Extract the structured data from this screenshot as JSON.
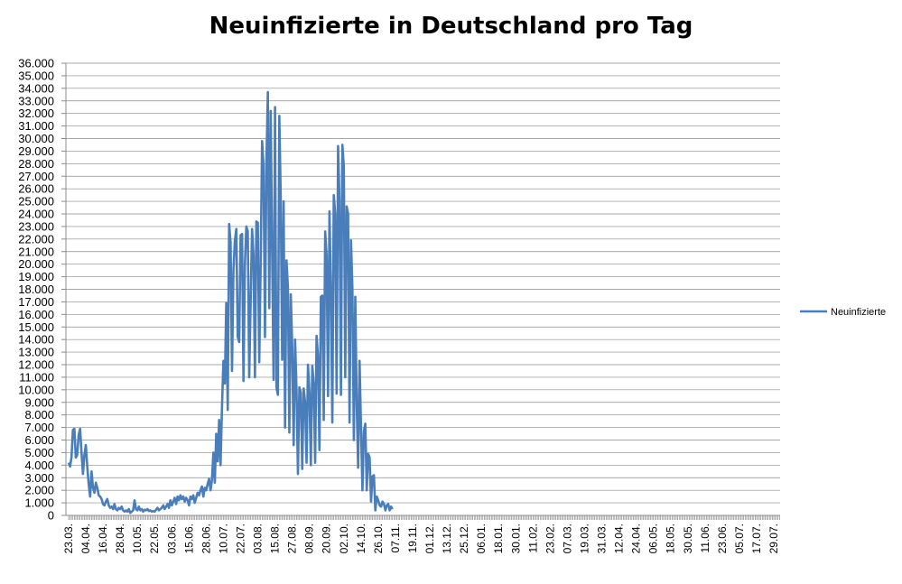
{
  "chart_data": {
    "type": "line",
    "title": "Neuinfizierte in Deutschland pro Tag",
    "xlabel": "",
    "ylabel": "",
    "ylim": [
      0,
      36000
    ],
    "y_tick_step": 1000,
    "y_tick_labels": [
      "0",
      "1.000",
      "2.000",
      "3.000",
      "4.000",
      "5.000",
      "6.000",
      "7.000",
      "8.000",
      "9.000",
      "10.000",
      "11.000",
      "12.000",
      "13.000",
      "14.000",
      "15.000",
      "16.000",
      "17.000",
      "18.000",
      "19.000",
      "20.000",
      "21.000",
      "22.000",
      "23.000",
      "24.000",
      "25.000",
      "26.000",
      "27.000",
      "28.000",
      "29.000",
      "30.000",
      "31.000",
      "32.000",
      "33.000",
      "34.000",
      "35.000",
      "36.000"
    ],
    "x_tick_labels": [
      "23.03.",
      "04.04.",
      "16.04.",
      "28.04.",
      "10.05.",
      "22.05.",
      "03.06.",
      "15.06.",
      "28.06.",
      "10.07.",
      "22.07.",
      "03.08.",
      "15.08.",
      "27.08.",
      "08.09.",
      "20.09.",
      "02.10.",
      "14.10.",
      "26.10.",
      "07.11.",
      "19.11.",
      "01.12.",
      "13.12.",
      "25.12.",
      "06.01.",
      "18.01.",
      "30.01.",
      "11.02.",
      "23.02.",
      "07.03.",
      "19.03.",
      "31.03.",
      "12.04.",
      "24.04.",
      "06.05.",
      "18.05.",
      "30.05.",
      "11.06.",
      "23.06.",
      "05.07.",
      "17.07.",
      "29.07."
    ],
    "grid": true,
    "legend_position": "right",
    "series": [
      {
        "name": "Neuinfizierte",
        "color": "#4a7ebb",
        "points": [
          [
            0,
            4200
          ],
          [
            1,
            3900
          ],
          [
            2,
            4600
          ],
          [
            3,
            6800
          ],
          [
            4,
            6900
          ],
          [
            5,
            4600
          ],
          [
            6,
            4800
          ],
          [
            7,
            6400
          ],
          [
            8,
            6900
          ],
          [
            9,
            5000
          ],
          [
            10,
            3300
          ],
          [
            11,
            4800
          ],
          [
            12,
            5600
          ],
          [
            13,
            3900
          ],
          [
            14,
            2500
          ],
          [
            15,
            1500
          ],
          [
            16,
            3500
          ],
          [
            17,
            2200
          ],
          [
            18,
            1800
          ],
          [
            19,
            2600
          ],
          [
            20,
            2200
          ],
          [
            21,
            1600
          ],
          [
            22,
            1500
          ],
          [
            23,
            1300
          ],
          [
            24,
            900
          ],
          [
            25,
            800
          ],
          [
            26,
            1100
          ],
          [
            27,
            1300
          ],
          [
            28,
            800
          ],
          [
            29,
            600
          ],
          [
            30,
            700
          ],
          [
            31,
            500
          ],
          [
            32,
            900
          ],
          [
            33,
            500
          ],
          [
            34,
            400
          ],
          [
            35,
            600
          ],
          [
            36,
            500
          ],
          [
            37,
            700
          ],
          [
            38,
            400
          ],
          [
            39,
            300
          ],
          [
            40,
            400
          ],
          [
            41,
            300
          ],
          [
            42,
            500
          ],
          [
            43,
            200
          ],
          [
            44,
            300
          ],
          [
            45,
            400
          ],
          [
            46,
            1200
          ],
          [
            47,
            500
          ],
          [
            48,
            400
          ],
          [
            49,
            700
          ],
          [
            50,
            400
          ],
          [
            51,
            500
          ],
          [
            52,
            300
          ],
          [
            53,
            450
          ],
          [
            54,
            400
          ],
          [
            55,
            500
          ],
          [
            56,
            350
          ],
          [
            57,
            400
          ],
          [
            58,
            300
          ],
          [
            59,
            350
          ],
          [
            60,
            300
          ],
          [
            61,
            450
          ],
          [
            62,
            600
          ],
          [
            63,
            400
          ],
          [
            64,
            500
          ],
          [
            65,
            600
          ],
          [
            66,
            800
          ],
          [
            67,
            500
          ],
          [
            68,
            700
          ],
          [
            69,
            900
          ],
          [
            70,
            600
          ],
          [
            71,
            1200
          ],
          [
            72,
            800
          ],
          [
            73,
            1100
          ],
          [
            74,
            1400
          ],
          [
            75,
            900
          ],
          [
            76,
            1500
          ],
          [
            77,
            1200
          ],
          [
            78,
            1600
          ],
          [
            79,
            1300
          ],
          [
            80,
            1500
          ],
          [
            81,
            1100
          ],
          [
            82,
            1400
          ],
          [
            83,
            1200
          ],
          [
            84,
            800
          ],
          [
            85,
            1500
          ],
          [
            86,
            1300
          ],
          [
            87,
            1600
          ],
          [
            88,
            1000
          ],
          [
            89,
            1400
          ],
          [
            90,
            1800
          ],
          [
            91,
            1600
          ],
          [
            92,
            2000
          ],
          [
            93,
            2300
          ],
          [
            94,
            1500
          ],
          [
            95,
            2200
          ],
          [
            96,
            2000
          ],
          [
            97,
            2500
          ],
          [
            98,
            2900
          ],
          [
            99,
            2000
          ],
          [
            100,
            2800
          ],
          [
            101,
            5000
          ],
          [
            102,
            2600
          ],
          [
            103,
            6500
          ],
          [
            104,
            4300
          ],
          [
            105,
            7600
          ],
          [
            106,
            4000
          ],
          [
            107,
            8600
          ],
          [
            108,
            12300
          ],
          [
            109,
            10500
          ],
          [
            110,
            16900
          ],
          [
            111,
            8400
          ],
          [
            112,
            23200
          ],
          [
            113,
            21700
          ],
          [
            114,
            11500
          ],
          [
            115,
            19500
          ],
          [
            116,
            21900
          ],
          [
            117,
            22800
          ],
          [
            118,
            14200
          ],
          [
            119,
            13800
          ],
          [
            120,
            22300
          ],
          [
            121,
            22400
          ],
          [
            122,
            10700
          ],
          [
            123,
            20000
          ],
          [
            124,
            23000
          ],
          [
            125,
            22600
          ],
          [
            126,
            11000
          ],
          [
            127,
            17000
          ],
          [
            128,
            22800
          ],
          [
            129,
            20700
          ],
          [
            130,
            11000
          ],
          [
            131,
            23400
          ],
          [
            132,
            23300
          ],
          [
            133,
            12200
          ],
          [
            134,
            20000
          ],
          [
            135,
            29800
          ],
          [
            136,
            27800
          ],
          [
            137,
            14200
          ],
          [
            138,
            28000
          ],
          [
            139,
            33700
          ],
          [
            140,
            16500
          ],
          [
            141,
            32200
          ],
          [
            142,
            21000
          ],
          [
            143,
            10800
          ],
          [
            144,
            32500
          ],
          [
            145,
            10200
          ],
          [
            146,
            9600
          ],
          [
            147,
            31800
          ],
          [
            148,
            25200
          ],
          [
            149,
            12400
          ],
          [
            150,
            25000
          ],
          [
            151,
            7000
          ],
          [
            152,
            20300
          ],
          [
            153,
            18200
          ],
          [
            154,
            6600
          ],
          [
            155,
            17600
          ],
          [
            156,
            13500
          ],
          [
            157,
            5600
          ],
          [
            158,
            14000
          ],
          [
            159,
            10000
          ],
          [
            160,
            3300
          ],
          [
            161,
            10200
          ],
          [
            162,
            9800
          ],
          [
            163,
            3700
          ],
          [
            164,
            10100
          ],
          [
            165,
            9000
          ],
          [
            166,
            4200
          ],
          [
            167,
            12000
          ],
          [
            168,
            9800
          ],
          [
            169,
            4000
          ],
          [
            170,
            11900
          ],
          [
            171,
            10500
          ],
          [
            172,
            4200
          ],
          [
            173,
            14300
          ],
          [
            174,
            12600
          ],
          [
            175,
            5200
          ],
          [
            176,
            17400
          ],
          [
            177,
            17500
          ],
          [
            178,
            7600
          ],
          [
            179,
            22600
          ],
          [
            180,
            20700
          ],
          [
            181,
            9500
          ],
          [
            182,
            24200
          ],
          [
            183,
            18000
          ],
          [
            184,
            7400
          ],
          [
            185,
            25500
          ],
          [
            186,
            24000
          ],
          [
            187,
            9700
          ],
          [
            188,
            29400
          ],
          [
            189,
            25000
          ],
          [
            190,
            9600
          ],
          [
            191,
            29500
          ],
          [
            192,
            27800
          ],
          [
            193,
            11000
          ],
          [
            194,
            24600
          ],
          [
            195,
            24000
          ],
          [
            196,
            7400
          ],
          [
            197,
            21900
          ],
          [
            198,
            18100
          ],
          [
            199,
            6000
          ],
          [
            200,
            17400
          ],
          [
            201,
            8900
          ],
          [
            202,
            3800
          ],
          [
            203,
            12300
          ],
          [
            204,
            7000
          ],
          [
            205,
            2000
          ],
          [
            206,
            6700
          ],
          [
            207,
            7300
          ],
          [
            208,
            2000
          ],
          [
            209,
            4900
          ],
          [
            210,
            4600
          ],
          [
            211,
            1100
          ],
          [
            212,
            3100
          ],
          [
            213,
            3200
          ],
          [
            214,
            400
          ],
          [
            215,
            1500
          ],
          [
            216,
            1200
          ],
          [
            217,
            800
          ],
          [
            218,
            700
          ],
          [
            219,
            1100
          ],
          [
            220,
            900
          ],
          [
            221,
            400
          ],
          [
            222,
            800
          ],
          [
            223,
            900
          ],
          [
            224,
            400
          ],
          [
            225,
            700
          ],
          [
            226,
            500
          ]
        ],
        "x_max": 226
      }
    ]
  }
}
